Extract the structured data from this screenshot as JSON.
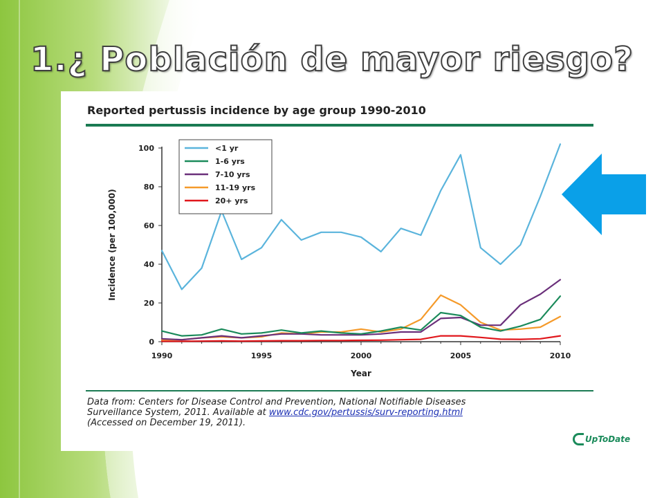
{
  "slide": {
    "title": "1.¿ Población de mayor riesgo?",
    "background_accent": "#8dc63f",
    "arrow_color": "#0aa0e8"
  },
  "figure": {
    "source_line1": "Data from: Centers for Disease Control and Prevention, National Notifiable Diseases",
    "source_line2": "Surveillance System, 2011. Available at",
    "source_link": "www.cdc.gov/pertussis/surv-reporting.html",
    "source_line3": "(Accessed on December 19, 2011).",
    "logo_text": "UpToDate"
  },
  "chart_data": {
    "type": "line",
    "title": "Reported pertussis incidence by age group 1990-2010",
    "xlabel": "Year",
    "ylabel": "Incidence (per 100,000)",
    "xlim": [
      1990,
      2010
    ],
    "ylim": [
      0,
      100
    ],
    "x_ticks": [
      1990,
      1995,
      2000,
      2005,
      2010
    ],
    "y_ticks": [
      0,
      20,
      40,
      60,
      80,
      100
    ],
    "grid": false,
    "legend_position": "top-left",
    "x": [
      1990,
      1991,
      1992,
      1993,
      1994,
      1995,
      1996,
      1997,
      1998,
      1999,
      2000,
      2001,
      2002,
      2003,
      2004,
      2005,
      2006,
      2007,
      2008,
      2009,
      2010
    ],
    "series": [
      {
        "name": "<1 yr",
        "color": "#5ab4dc",
        "values": [
          47,
          27,
          38,
          67.5,
          42.5,
          48.5,
          63,
          52.5,
          56.5,
          56.5,
          54,
          46.5,
          58.5,
          55,
          78,
          96.5,
          48.5,
          40,
          50,
          75,
          102
        ]
      },
      {
        "name": "1-6 yrs",
        "color": "#1a8a5a",
        "values": [
          5.5,
          3,
          3.5,
          6.5,
          4,
          4.5,
          6,
          4.5,
          5.5,
          4.5,
          4,
          5.5,
          7.5,
          6,
          15,
          13.5,
          7.5,
          5.5,
          8,
          11.5,
          23.5
        ]
      },
      {
        "name": "7-10 yrs",
        "color": "#6a2f7a",
        "values": [
          1.5,
          1,
          2,
          3,
          2,
          3,
          4,
          4,
          3.5,
          3.5,
          3.5,
          4,
          5,
          5,
          12,
          12.5,
          8.5,
          8.5,
          19,
          24.5,
          32
        ]
      },
      {
        "name": "11-19 yrs",
        "color": "#f59a2a",
        "values": [
          1,
          1,
          2,
          2.5,
          2,
          2.5,
          4.5,
          4,
          5,
          5,
          6.5,
          5,
          6.5,
          11.5,
          24,
          19,
          10,
          6,
          6.5,
          7.5,
          13
        ]
      },
      {
        "name": "20+ yrs",
        "color": "#e0161b",
        "values": [
          0.2,
          0.2,
          0.3,
          0.4,
          0.3,
          0.4,
          0.5,
          0.5,
          0.6,
          0.6,
          0.7,
          0.8,
          1,
          1.2,
          3,
          3,
          2.2,
          1.3,
          1.2,
          1.5,
          3
        ]
      }
    ]
  }
}
